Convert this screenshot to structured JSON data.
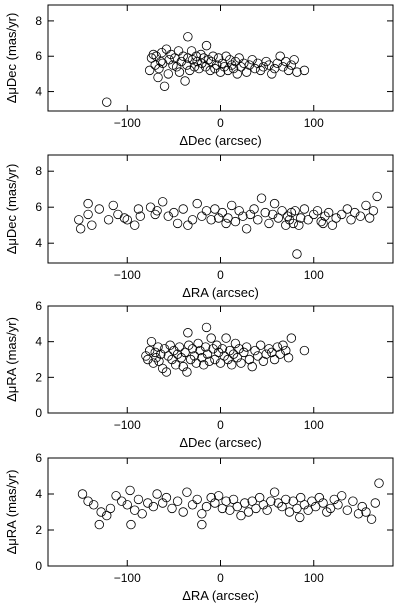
{
  "chart_data": [
    {
      "type": "scatter",
      "xlabel": "ΔDec (arcsec)",
      "ylabel": "ΔμDec (mas/yr)",
      "xlim": [
        -185,
        185
      ],
      "ylim": [
        2.9,
        8.9
      ],
      "xticks": [
        -100,
        0,
        100
      ],
      "yticks": [
        4,
        6,
        8
      ],
      "x": [
        -122,
        -76,
        -74,
        -72,
        -70,
        -69,
        -67,
        -66,
        -64,
        -63,
        -62,
        -60,
        -58,
        -56,
        -55,
        -53,
        -51,
        -49,
        -47,
        -45,
        -44,
        -42,
        -40,
        -38,
        -36,
        -35,
        -33,
        -31,
        -30,
        -28,
        -26,
        -25,
        -23,
        -21,
        -20,
        -18,
        -16,
        -15,
        -13,
        -11,
        -10,
        -8,
        -6,
        -4,
        -2,
        0,
        2,
        4,
        6,
        8,
        10,
        12,
        14,
        16,
        18,
        20,
        22,
        25,
        28,
        31,
        34,
        37,
        40,
        43,
        46,
        49,
        52,
        55,
        58,
        61,
        64,
        67,
        70,
        73,
        76,
        79,
        82,
        90,
        -35
      ],
      "y": [
        3.4,
        5.2,
        5.9,
        6.1,
        5.5,
        6.0,
        4.8,
        5.3,
        5.7,
        6.2,
        5.6,
        4.3,
        6.4,
        5.0,
        5.8,
        6.1,
        5.5,
        5.9,
        5.4,
        6.3,
        5.1,
        5.7,
        6.0,
        4.6,
        5.5,
        5.9,
        5.2,
        6.3,
        5.8,
        5.4,
        6.0,
        5.7,
        5.3,
        6.1,
        5.6,
        5.9,
        5.4,
        6.6,
        5.8,
        5.2,
        5.7,
        6.0,
        5.3,
        5.5,
        5.9,
        5.1,
        5.6,
        5.4,
        6.0,
        5.2,
        5.8,
        5.5,
        5.3,
        5.7,
        5.0,
        5.9,
        5.4,
        5.6,
        5.1,
        5.5,
        5.8,
        5.3,
        5.6,
        5.2,
        5.4,
        5.7,
        5.5,
        5.0,
        5.3,
        5.6,
        6.0,
        5.4,
        5.7,
        5.2,
        5.5,
        5.8,
        5.1,
        5.2,
        7.1
      ]
    },
    {
      "type": "scatter",
      "xlabel": "ΔRA (arcsec)",
      "ylabel": "ΔμDec (mas/yr)",
      "xlim": [
        -185,
        185
      ],
      "ylim": [
        2.9,
        8.9
      ],
      "xticks": [
        -100,
        0,
        100
      ],
      "yticks": [
        4,
        6,
        8
      ],
      "x": [
        -152,
        -150,
        -142,
        -138,
        -130,
        -120,
        -115,
        -110,
        -103,
        -100,
        -92,
        -88,
        -86,
        -75,
        -70,
        -68,
        -62,
        -56,
        -50,
        -46,
        -40,
        -35,
        -30,
        -25,
        -20,
        -15,
        -10,
        -6,
        -2,
        2,
        6,
        8,
        12,
        16,
        20,
        24,
        28,
        32,
        36,
        40,
        44,
        48,
        52,
        56,
        58,
        62,
        66,
        70,
        72,
        74,
        76,
        78,
        80,
        82,
        84,
        86,
        90,
        94,
        100,
        104,
        108,
        112,
        116,
        120,
        124,
        130,
        136,
        140,
        144,
        150,
        156,
        160,
        164,
        168,
        -142,
        110
      ],
      "y": [
        5.3,
        4.8,
        5.6,
        5.0,
        5.9,
        5.3,
        6.1,
        5.6,
        5.4,
        5.3,
        5.0,
        5.9,
        5.5,
        6.0,
        5.6,
        5.8,
        6.3,
        5.5,
        5.7,
        5.1,
        5.9,
        5.0,
        5.3,
        6.2,
        5.5,
        5.8,
        5.3,
        5.9,
        5.4,
        5.7,
        5.1,
        5.4,
        6.1,
        5.2,
        5.8,
        5.5,
        4.8,
        5.6,
        5.9,
        5.3,
        6.5,
        5.7,
        5.1,
        5.6,
        6.2,
        5.4,
        5.8,
        5.0,
        5.5,
        5.3,
        5.7,
        5.1,
        5.8,
        3.4,
        5.0,
        5.4,
        5.9,
        5.3,
        5.6,
        5.8,
        5.2,
        5.5,
        5.7,
        5.0,
        5.4,
        5.6,
        5.9,
        5.3,
        5.7,
        5.5,
        6.1,
        5.4,
        5.8,
        6.6,
        6.2,
        5.1
      ]
    },
    {
      "type": "scatter",
      "xlabel": "ΔDec (arcsec)",
      "ylabel": "ΔμRA (mas/yr)",
      "xlim": [
        -185,
        185
      ],
      "ylim": [
        0,
        6
      ],
      "xticks": [
        -100,
        0,
        100
      ],
      "yticks": [
        0,
        2,
        4,
        6
      ],
      "x": [
        -80,
        -78,
        -76,
        -74,
        -72,
        -70,
        -69,
        -67,
        -66,
        -64,
        -62,
        -60,
        -58,
        -56,
        -54,
        -52,
        -50,
        -48,
        -46,
        -44,
        -42,
        -40,
        -38,
        -36,
        -34,
        -32,
        -30,
        -28,
        -26,
        -24,
        -22,
        -20,
        -18,
        -16,
        -14,
        -12,
        -10,
        -8,
        -6,
        -4,
        -2,
        0,
        2,
        4,
        6,
        8,
        10,
        12,
        14,
        16,
        18,
        20,
        22,
        25,
        28,
        31,
        34,
        37,
        40,
        43,
        46,
        49,
        52,
        55,
        58,
        61,
        64,
        67,
        70,
        73,
        76,
        90,
        -35,
        -15
      ],
      "y": [
        3.2,
        3.0,
        3.5,
        4.0,
        2.8,
        3.4,
        3.1,
        3.7,
        2.9,
        3.3,
        2.5,
        3.6,
        2.3,
        3.2,
        3.8,
        3.0,
        3.5,
        2.7,
        3.3,
        3.7,
        3.1,
        2.6,
        3.4,
        2.3,
        3.8,
        3.0,
        3.6,
        3.2,
        2.8,
        3.9,
        3.5,
        3.1,
        2.7,
        3.7,
        3.3,
        2.9,
        4.2,
        3.6,
        3.0,
        3.8,
        3.4,
        2.8,
        3.6,
        3.2,
        4.2,
        3.0,
        3.5,
        2.7,
        3.3,
        3.9,
        3.1,
        3.6,
        2.8,
        3.4,
        3.7,
        3.0,
        2.6,
        3.5,
        3.2,
        3.8,
        2.9,
        3.3,
        3.6,
        3.4,
        3.0,
        3.7,
        3.3,
        3.8,
        3.5,
        3.1,
        4.2,
        3.5,
        4.5,
        4.8
      ]
    },
    {
      "type": "scatter",
      "xlabel": "ΔRA (arcsec)",
      "ylabel": "ΔμRA (mas/yr)",
      "xlim": [
        -185,
        185
      ],
      "ylim": [
        0,
        6
      ],
      "xticks": [
        -100,
        0,
        100
      ],
      "yticks": [
        0,
        2,
        4,
        6
      ],
      "x": [
        -148,
        -142,
        -136,
        -128,
        -122,
        -118,
        -112,
        -106,
        -100,
        -97,
        -92,
        -88,
        -84,
        -78,
        -72,
        -68,
        -62,
        -58,
        -52,
        -46,
        -40,
        -36,
        -30,
        -25,
        -20,
        -15,
        -10,
        -6,
        -2,
        2,
        6,
        10,
        14,
        18,
        22,
        26,
        30,
        34,
        38,
        42,
        46,
        50,
        54,
        58,
        62,
        66,
        70,
        74,
        78,
        82,
        86,
        90,
        94,
        98,
        102,
        106,
        110,
        114,
        118,
        122,
        126,
        130,
        136,
        142,
        148,
        152,
        156,
        162,
        166,
        -130,
        -96,
        170,
        -20,
        85
      ],
      "y": [
        4.0,
        3.6,
        3.4,
        3.0,
        2.8,
        3.2,
        3.9,
        3.6,
        3.4,
        4.2,
        3.1,
        3.7,
        2.9,
        3.5,
        3.3,
        4.0,
        3.5,
        3.8,
        3.2,
        3.6,
        3.0,
        4.1,
        3.4,
        3.7,
        2.9,
        3.3,
        3.8,
        3.5,
        3.9,
        3.2,
        3.6,
        3.1,
        3.7,
        3.3,
        2.8,
        3.5,
        3.0,
        3.6,
        3.2,
        3.8,
        3.4,
        3.1,
        3.6,
        4.1,
        3.5,
        3.3,
        3.7,
        3.0,
        3.6,
        3.2,
        3.8,
        3.4,
        3.1,
        3.6,
        3.3,
        3.8,
        3.5,
        3.0,
        3.2,
        3.7,
        3.4,
        3.9,
        3.1,
        3.6,
        2.9,
        3.3,
        3.0,
        2.6,
        3.5,
        2.3,
        2.3,
        4.6,
        2.3,
        2.7
      ]
    }
  ]
}
